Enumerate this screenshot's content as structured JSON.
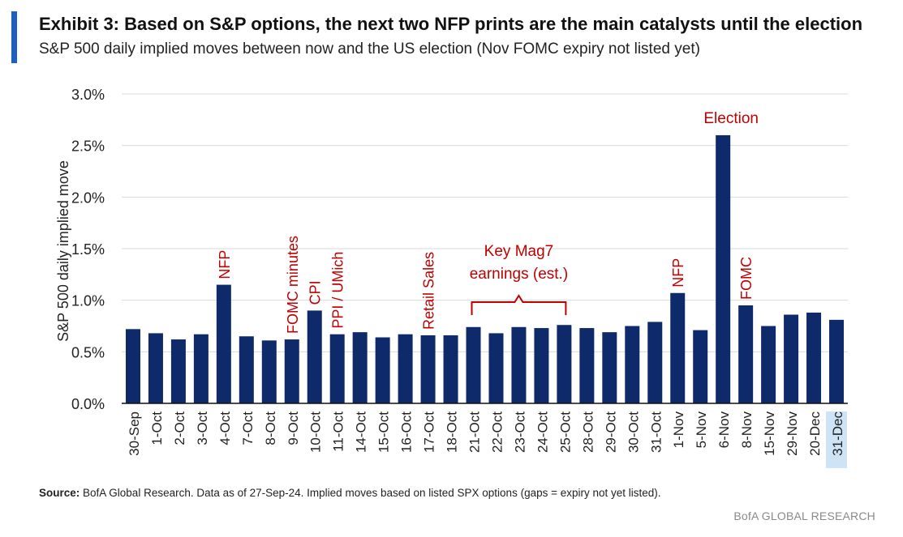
{
  "header": {
    "title": "Exhibit 3: Based on S&P options, the next two NFP prints are the main catalysts until the election",
    "subtitle": "S&P 500 daily implied moves between now and the US election (Nov FOMC expiry not listed yet)"
  },
  "footer": {
    "source_label": "Source:",
    "source_text": " BofA Global Research. Data as of 27-Sep-24. Implied moves based on listed SPX options (gaps = expiry not yet listed).",
    "brand": "BofA GLOBAL RESEARCH"
  },
  "colors": {
    "accent": "#1f5fbf",
    "bar": "#0f2a6b",
    "annotation": "#c00000",
    "grid": "#d9d9d9",
    "highlight": "#cfe3f7"
  },
  "chart_data": {
    "type": "bar",
    "ylabel": "S&P 500 daily implied move",
    "ylim": [
      0,
      3.0
    ],
    "yticks": [
      "0.0%",
      "0.5%",
      "1.0%",
      "1.5%",
      "2.0%",
      "2.5%",
      "3.0%"
    ],
    "grid": true,
    "legend": "none",
    "categories": [
      "30-Sep",
      "1-Oct",
      "2-Oct",
      "3-Oct",
      "4-Oct",
      "7-Oct",
      "8-Oct",
      "9-Oct",
      "10-Oct",
      "11-Oct",
      "14-Oct",
      "15-Oct",
      "16-Oct",
      "17-Oct",
      "18-Oct",
      "21-Oct",
      "22-Oct",
      "23-Oct",
      "24-Oct",
      "25-Oct",
      "28-Oct",
      "29-Oct",
      "30-Oct",
      "31-Oct",
      "1-Nov",
      "5-Nov",
      "6-Nov",
      "8-Nov",
      "15-Nov",
      "29-Nov",
      "20-Dec",
      "31-Dec"
    ],
    "values": [
      0.72,
      0.68,
      0.62,
      0.67,
      1.15,
      0.65,
      0.61,
      0.62,
      0.9,
      0.67,
      0.69,
      0.64,
      0.67,
      0.66,
      0.66,
      0.74,
      0.68,
      0.74,
      0.73,
      0.76,
      0.73,
      0.69,
      0.75,
      0.79,
      1.07,
      0.71,
      2.6,
      0.95,
      0.75,
      0.86,
      0.88,
      0.81
    ],
    "highlighted_category": "31-Dec",
    "annotations": [
      {
        "text": "NFP",
        "category": "4-Oct",
        "rotated": true
      },
      {
        "text": "FOMC minutes",
        "category": "9-Oct",
        "rotated": true
      },
      {
        "text": "CPI",
        "category": "10-Oct",
        "rotated": true
      },
      {
        "text": "PPI / UMich",
        "category": "11-Oct",
        "rotated": true
      },
      {
        "text": "Retail Sales",
        "category": "17-Oct",
        "rotated": true
      },
      {
        "text": "NFP",
        "category": "1-Nov",
        "rotated": true
      },
      {
        "text": "FOMC",
        "category": "8-Nov",
        "rotated": true
      },
      {
        "text": "Election",
        "category": "6-Nov",
        "rotated": false
      }
    ],
    "bracket": {
      "from": "21-Oct",
      "to": "25-Oct",
      "line1": "Key Mag7",
      "line2": "earnings (est.)"
    }
  }
}
